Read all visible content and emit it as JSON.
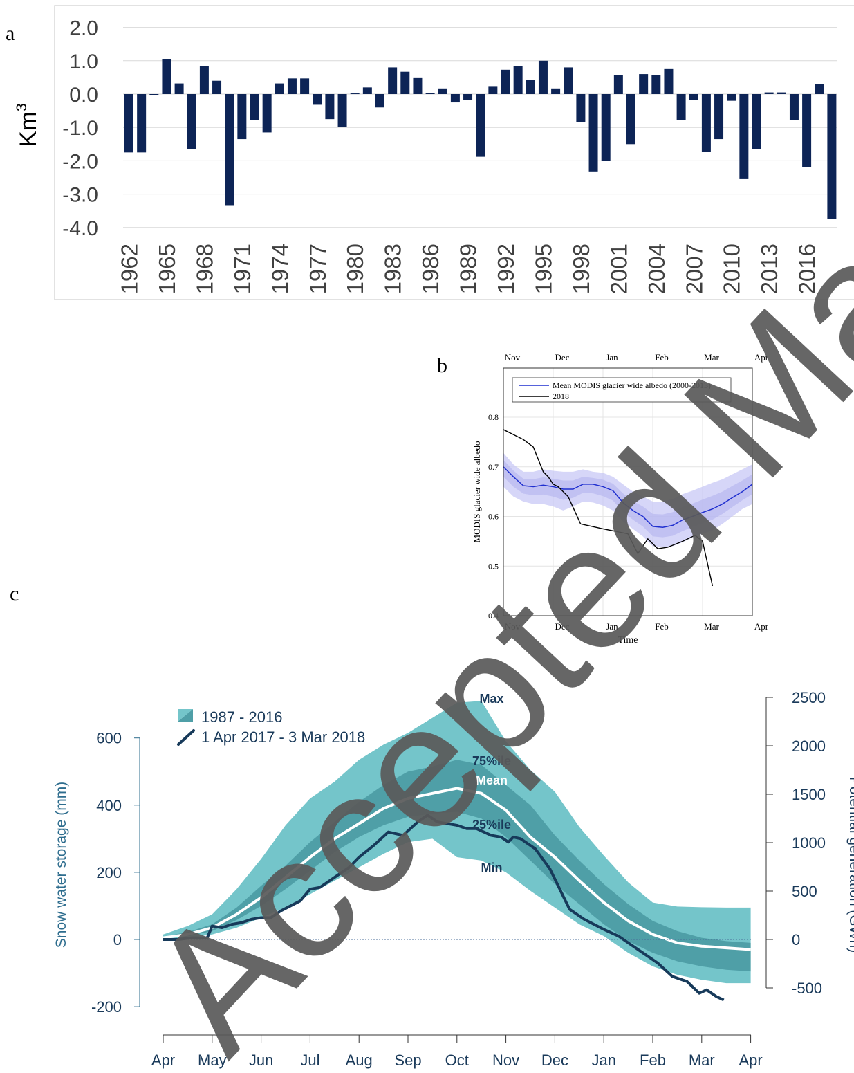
{
  "panel_labels": {
    "a": "a",
    "b": "b",
    "c": "c"
  },
  "watermark": "Accepted Manuscript",
  "colors": {
    "bar": "#0d2456",
    "band_outer": "#74c5ca",
    "band_inner": "#4f9fa7",
    "line_2017": "#173a5a",
    "modis_mean": "#1f2fcf",
    "modis_band": "#c8c8f5",
    "watermark": "#5a5a5a"
  },
  "chart_data": [
    {
      "type": "bar",
      "ylabel": "Km",
      "ylabel_superscript": "3",
      "ylim": [
        -4.0,
        2.0
      ],
      "yticks": [
        "2.0",
        "1.0",
        "0.0",
        "-1.0",
        "-2.0",
        "-3.0",
        "-4.0"
      ],
      "categories": [
        1962,
        1963,
        1964,
        1965,
        1966,
        1967,
        1968,
        1969,
        1970,
        1971,
        1972,
        1973,
        1974,
        1975,
        1976,
        1977,
        1978,
        1979,
        1980,
        1981,
        1982,
        1983,
        1984,
        1985,
        1986,
        1987,
        1988,
        1989,
        1990,
        1991,
        1992,
        1993,
        1994,
        1995,
        1996,
        1997,
        1998,
        1999,
        2000,
        2001,
        2002,
        2003,
        2004,
        2005,
        2006,
        2007,
        2008,
        2009,
        2010,
        2011,
        2012,
        2013,
        2014,
        2015,
        2016,
        2017,
        2018
      ],
      "xtick_labels": [
        "1962",
        "1965",
        "1968",
        "1971",
        "1974",
        "1977",
        "1980",
        "1983",
        "1986",
        "1989",
        "1992",
        "1995",
        "1998",
        "2001",
        "2004",
        "2007",
        "2010",
        "2013",
        "2016"
      ],
      "values": [
        -1.75,
        -1.75,
        -0.02,
        1.05,
        0.32,
        -1.65,
        0.83,
        0.4,
        -3.35,
        -1.35,
        -0.78,
        -1.15,
        0.32,
        0.47,
        0.47,
        -0.32,
        -0.75,
        -0.98,
        0.02,
        0.2,
        -0.4,
        0.8,
        0.67,
        0.48,
        0.03,
        0.17,
        -0.25,
        -0.17,
        -1.88,
        0.22,
        0.73,
        0.83,
        0.42,
        1.0,
        0.17,
        0.8,
        -0.85,
        -2.32,
        -2.0,
        0.57,
        -1.5,
        0.6,
        0.57,
        0.75,
        -0.78,
        -0.17,
        -1.73,
        -1.35,
        -0.2,
        -2.55,
        -1.65,
        0.05,
        0.05,
        -0.78,
        -2.18,
        0.3,
        -3.75
      ]
    },
    {
      "type": "line",
      "xlabel": "Time",
      "ylabel": "MODIS glacier wide albedo",
      "ylim": [
        0.4,
        0.8
      ],
      "yticks": [
        "0.4",
        "0.5",
        "0.6",
        "0.7",
        "0.8"
      ],
      "xtick_labels": [
        "Nov",
        "Dec",
        "Jan",
        "Feb",
        "Mar",
        "Apr"
      ],
      "grid": true,
      "legend_position": "top",
      "series": [
        {
          "name": "Mean MODIS glacier wide albedo (2000-2013)",
          "x": [
            0,
            0.2,
            0.4,
            0.6,
            0.8,
            1.0,
            1.2,
            1.4,
            1.6,
            1.8,
            2.0,
            2.2,
            2.4,
            2.6,
            2.8,
            3.0,
            3.2,
            3.4,
            3.6,
            3.8,
            4.0,
            4.2,
            4.4,
            4.6,
            4.8,
            5.0
          ],
          "values": [
            0.7,
            0.68,
            0.662,
            0.66,
            0.663,
            0.66,
            0.655,
            0.655,
            0.665,
            0.665,
            0.66,
            0.652,
            0.628,
            0.612,
            0.6,
            0.58,
            0.578,
            0.582,
            0.593,
            0.6,
            0.608,
            0.615,
            0.625,
            0.638,
            0.65,
            0.665
          ],
          "upper": [
            0.728,
            0.705,
            0.69,
            0.69,
            0.695,
            0.692,
            0.69,
            0.69,
            0.695,
            0.69,
            0.688,
            0.68,
            0.665,
            0.65,
            0.64,
            0.63,
            0.63,
            0.635,
            0.645,
            0.652,
            0.66,
            0.668,
            0.675,
            0.685,
            0.695,
            0.705
          ],
          "lower": [
            0.66,
            0.64,
            0.63,
            0.625,
            0.625,
            0.62,
            0.612,
            0.62,
            0.63,
            0.628,
            0.622,
            0.612,
            0.59,
            0.575,
            0.56,
            0.54,
            0.538,
            0.54,
            0.548,
            0.558,
            0.565,
            0.572,
            0.585,
            0.6,
            0.615,
            0.625
          ]
        },
        {
          "name": "2018",
          "x": [
            0,
            0.4,
            0.6,
            0.8,
            0.9,
            1.0,
            1.1,
            1.3,
            1.55,
            2.0,
            2.5,
            2.7,
            2.9,
            3.1,
            3.3,
            3.6,
            3.85,
            4.0,
            4.2
          ],
          "values": [
            0.775,
            0.755,
            0.74,
            0.69,
            0.68,
            0.665,
            0.66,
            0.64,
            0.585,
            0.575,
            0.565,
            0.525,
            0.555,
            0.535,
            0.538,
            0.55,
            0.562,
            0.55,
            0.46
          ]
        }
      ]
    },
    {
      "type": "area",
      "ylabel": "Snow water storage (mm)",
      "y2label": "Potential generation (GWh)",
      "ylim": [
        -200,
        650
      ],
      "y2lim": [
        -500,
        2500
      ],
      "yticks": [
        "600",
        "400",
        "200",
        "0",
        "-200"
      ],
      "y2ticks": [
        "2500",
        "2000",
        "1500",
        "1000",
        "500",
        "0",
        "-500"
      ],
      "xtick_labels": [
        "Apr",
        "May",
        "Jun",
        "Jul",
        "Aug",
        "Sep",
        "Oct",
        "Nov",
        "Dec",
        "Jan",
        "Feb",
        "Mar",
        "Apr"
      ],
      "annotations": {
        "max": "Max",
        "p75": "75%ile",
        "mean": "Mean",
        "p25": "25%ile",
        "min": "Min"
      },
      "legend": {
        "band": "1987 - 2016",
        "line": "1 Apr 2017 - 3 Mar 2018"
      },
      "x": [
        0,
        0.5,
        1,
        1.5,
        2,
        2.5,
        3,
        3.5,
        4,
        4.5,
        5,
        5.5,
        6,
        6.5,
        7,
        7.5,
        8,
        8.5,
        9,
        9.5,
        10,
        10.5,
        11,
        11.5,
        12
      ],
      "max": [
        15,
        40,
        75,
        150,
        240,
        340,
        420,
        470,
        535,
        580,
        615,
        660,
        705,
        710,
        590,
        505,
        440,
        335,
        250,
        170,
        110,
        98,
        96,
        95,
        95
      ],
      "p75": [
        8,
        22,
        45,
        95,
        160,
        220,
        290,
        350,
        410,
        460,
        500,
        515,
        535,
        520,
        460,
        400,
        310,
        235,
        165,
        105,
        55,
        25,
        5,
        -5,
        -10
      ],
      "mean": [
        5,
        15,
        35,
        75,
        125,
        185,
        245,
        300,
        345,
        390,
        420,
        435,
        450,
        435,
        385,
        305,
        245,
        175,
        110,
        55,
        15,
        -10,
        -20,
        -25,
        -30
      ],
      "p25": [
        3,
        10,
        25,
        58,
        100,
        150,
        205,
        260,
        305,
        340,
        365,
        375,
        380,
        360,
        305,
        235,
        165,
        105,
        45,
        -5,
        -40,
        -65,
        -80,
        -90,
        -95
      ],
      "min": [
        2,
        5,
        15,
        35,
        65,
        95,
        135,
        175,
        215,
        255,
        290,
        300,
        245,
        235,
        200,
        145,
        95,
        45,
        10,
        -40,
        -80,
        -105,
        -120,
        -130,
        -130
      ],
      "series_2017": [
        [
          0,
          0
        ],
        [
          0.3,
          0
        ],
        [
          0.6,
          5
        ],
        [
          0.9,
          5
        ],
        [
          1.0,
          40
        ],
        [
          1.2,
          35
        ],
        [
          1.4,
          45
        ],
        [
          1.6,
          50
        ],
        [
          1.8,
          60
        ],
        [
          2.0,
          65
        ],
        [
          2.2,
          65
        ],
        [
          2.4,
          85
        ],
        [
          2.6,
          100
        ],
        [
          2.8,
          115
        ],
        [
          3.0,
          150
        ],
        [
          3.2,
          155
        ],
        [
          3.4,
          175
        ],
        [
          3.6,
          195
        ],
        [
          3.8,
          215
        ],
        [
          4.0,
          245
        ],
        [
          4.3,
          280
        ],
        [
          4.6,
          320
        ],
        [
          4.9,
          310
        ],
        [
          5.2,
          350
        ],
        [
          5.4,
          370
        ],
        [
          5.6,
          350
        ],
        [
          5.8,
          345
        ],
        [
          6.0,
          340
        ],
        [
          6.2,
          330
        ],
        [
          6.4,
          330
        ],
        [
          6.7,
          310
        ],
        [
          6.9,
          305
        ],
        [
          7.05,
          290
        ],
        [
          7.15,
          305
        ],
        [
          7.3,
          300
        ],
        [
          7.6,
          270
        ],
        [
          7.9,
          210
        ],
        [
          8.1,
          150
        ],
        [
          8.3,
          90
        ],
        [
          8.6,
          60
        ],
        [
          9.0,
          30
        ],
        [
          9.3,
          10
        ],
        [
          9.5,
          -10
        ],
        [
          9.8,
          -40
        ],
        [
          10.1,
          -70
        ],
        [
          10.4,
          -110
        ],
        [
          10.7,
          -125
        ],
        [
          10.95,
          -160
        ],
        [
          11.1,
          -150
        ],
        [
          11.3,
          -170
        ],
        [
          11.45,
          -180
        ]
      ]
    }
  ]
}
